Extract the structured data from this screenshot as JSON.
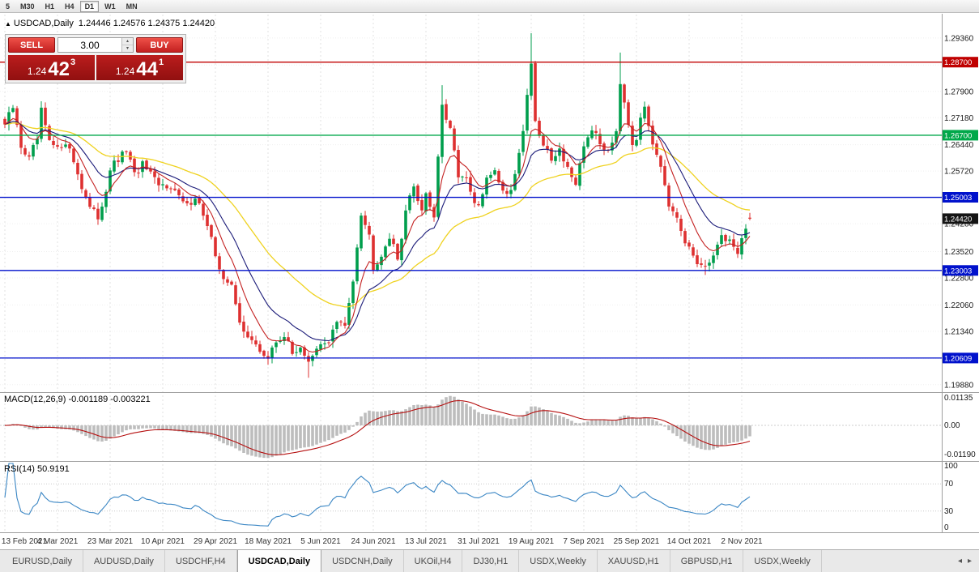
{
  "toolbar": {
    "timeframes": [
      {
        "label": "5",
        "active": false
      },
      {
        "label": "M30",
        "active": false
      },
      {
        "label": "H1",
        "active": false
      },
      {
        "label": "H4",
        "active": false
      },
      {
        "label": "D1",
        "active": true
      },
      {
        "label": "W1",
        "active": false
      },
      {
        "label": "MN",
        "active": false
      }
    ]
  },
  "chart_header": {
    "marker": "▲",
    "symbol_label": "USDCAD,Daily",
    "ohlc_text": "1.24446 1.24576 1.24375 1.24420"
  },
  "trade_panel": {
    "sell_label": "SELL",
    "buy_label": "BUY",
    "volume": "3.00",
    "volume_up_glyph": "▴",
    "volume_down_glyph": "▾",
    "sell_price": {
      "prefix": "1.24",
      "big": "42",
      "sup": "3"
    },
    "buy_price": {
      "prefix": "1.24",
      "big": "44",
      "sup": "1"
    }
  },
  "colors": {
    "up_candle": "#009E4C",
    "down_candle": "#DE3030",
    "ma_fast": "#C42222",
    "ma_mid": "#1A1A78",
    "ma_slow": "#EFD21F",
    "macd_hist": "#BDBDBD",
    "macd_signal": "#B50F0F",
    "rsi_line": "#3A86C4",
    "grid": "#E2E2E2",
    "axis_text": "#1A1A1A"
  },
  "chart_data": {
    "type": "candlestick",
    "symbol": "USDCAD",
    "timeframe": "Daily",
    "current": {
      "open": 1.24446,
      "high": 1.24576,
      "low": 1.24375,
      "close": 1.2442
    },
    "candle_count": 185,
    "candles_per_label": 13,
    "x_labels": [
      "13 Feb 2021",
      "4 Mar 2021",
      "23 Mar 2021",
      "10 Apr 2021",
      "29 Apr 2021",
      "18 May 2021",
      "5 Jun 2021",
      "24 Jun 2021",
      "13 Jul 2021",
      "31 Jul 2021",
      "19 Aug 2021",
      "7 Sep 2021",
      "25 Sep 2021",
      "14 Oct 2021",
      "2 Nov 2021"
    ],
    "y_axis": {
      "max": 1.3,
      "min": 1.1972,
      "labels": [
        "1.29360",
        "1.27900",
        "1.27180",
        "1.26440",
        "1.25720",
        "1.24280",
        "1.23520",
        "1.22800",
        "1.22060",
        "1.21340",
        "1.19880"
      ],
      "grid_prices": [
        "1.29360",
        "1.28620",
        "1.27900",
        "1.27180",
        "1.26440",
        "1.25720",
        "1.25000",
        "1.24280",
        "1.23520",
        "1.22800",
        "1.22060",
        "1.21340",
        "1.20600",
        "1.19880"
      ]
    },
    "price_tags": [
      {
        "text": "1.28700",
        "color": "#C00000",
        "line": true
      },
      {
        "text": "1.26700",
        "color": "#00A84A",
        "line": true
      },
      {
        "text": "1.25003",
        "color": "#0011CC",
        "line": true
      },
      {
        "text": "1.24420",
        "color": "#141414",
        "line": false
      },
      {
        "text": "1.23003",
        "color": "#0011CC",
        "line": true
      },
      {
        "text": "1.20609",
        "color": "#0011CC",
        "line": true
      }
    ],
    "price_waypoints": [
      [
        0,
        1.27
      ],
      [
        2,
        1.2745
      ],
      [
        4,
        1.264
      ],
      [
        6,
        1.2605
      ],
      [
        8,
        1.266
      ],
      [
        9,
        1.2735
      ],
      [
        11,
        1.265
      ],
      [
        13,
        1.263
      ],
      [
        15,
        1.2655
      ],
      [
        17,
        1.26
      ],
      [
        19,
        1.253
      ],
      [
        21,
        1.247
      ],
      [
        23,
        1.2445
      ],
      [
        25,
        1.252
      ],
      [
        26,
        1.258
      ],
      [
        28,
        1.26
      ],
      [
        30,
        1.263
      ],
      [
        32,
        1.256
      ],
      [
        34,
        1.259
      ],
      [
        36,
        1.256
      ],
      [
        38,
        1.253
      ],
      [
        41,
        1.2535
      ],
      [
        43,
        1.25
      ],
      [
        45,
        1.2475
      ],
      [
        47,
        1.2505
      ],
      [
        49,
        1.2455
      ],
      [
        51,
        1.2385
      ],
      [
        52,
        1.233
      ],
      [
        54,
        1.2285
      ],
      [
        56,
        1.2255
      ],
      [
        58,
        1.2155
      ],
      [
        60,
        1.2125
      ],
      [
        62,
        1.209
      ],
      [
        64,
        1.207
      ],
      [
        65,
        1.206
      ],
      [
        67,
        1.2105
      ],
      [
        69,
        1.2125
      ],
      [
        71,
        1.207
      ],
      [
        73,
        1.2095
      ],
      [
        75,
        1.2045
      ],
      [
        77,
        1.208
      ],
      [
        78,
        1.2095
      ],
      [
        80,
        1.211
      ],
      [
        82,
        1.216
      ],
      [
        84,
        1.2145
      ],
      [
        86,
        1.228
      ],
      [
        88,
        1.246
      ],
      [
        90,
        1.2395
      ],
      [
        91,
        1.231
      ],
      [
        93,
        1.2345
      ],
      [
        95,
        1.2395
      ],
      [
        97,
        1.233
      ],
      [
        99,
        1.2465
      ],
      [
        101,
        1.253
      ],
      [
        103,
        1.2465
      ],
      [
        104,
        1.2515
      ],
      [
        106,
        1.2445
      ],
      [
        107,
        1.2615
      ],
      [
        108,
        1.2745
      ],
      [
        110,
        1.268
      ],
      [
        112,
        1.2565
      ],
      [
        114,
        1.2545
      ],
      [
        116,
        1.248
      ],
      [
        117,
        1.2475
      ],
      [
        119,
        1.2545
      ],
      [
        121,
        1.258
      ],
      [
        123,
        1.2515
      ],
      [
        125,
        1.252
      ],
      [
        127,
        1.2625
      ],
      [
        128,
        1.268
      ],
      [
        129,
        1.2785
      ],
      [
        130,
        1.287
      ],
      [
        131,
        1.27
      ],
      [
        133,
        1.264
      ],
      [
        135,
        1.261
      ],
      [
        137,
        1.263
      ],
      [
        139,
        1.2585
      ],
      [
        141,
        1.2525
      ],
      [
        143,
        1.264
      ],
      [
        145,
        1.269
      ],
      [
        147,
        1.2645
      ],
      [
        149,
        1.263
      ],
      [
        151,
        1.2685
      ],
      [
        152,
        1.282
      ],
      [
        153,
        1.2765
      ],
      [
        155,
        1.265
      ],
      [
        156,
        1.2665
      ],
      [
        158,
        1.275
      ],
      [
        160,
        1.2655
      ],
      [
        162,
        1.259
      ],
      [
        164,
        1.2465
      ],
      [
        166,
        1.244
      ],
      [
        168,
        1.237
      ],
      [
        169,
        1.2365
      ],
      [
        171,
        1.232
      ],
      [
        173,
        1.23
      ],
      [
        175,
        1.235
      ],
      [
        177,
        1.239
      ],
      [
        179,
        1.2385
      ],
      [
        181,
        1.2345
      ],
      [
        182,
        1.2395
      ],
      [
        184,
        1.2442
      ]
    ],
    "high_overrides": [
      [
        108,
        1.2807
      ],
      [
        130,
        1.2949
      ],
      [
        152,
        1.2896
      ]
    ],
    "low_overrides": [
      [
        23,
        1.2425
      ],
      [
        75,
        1.2007
      ],
      [
        173,
        1.2288
      ]
    ],
    "macd": {
      "label": "MACD(12,26,9) -0.001189 -0.003221",
      "fast": 12,
      "slow": 26,
      "signal": 9,
      "current_main": -0.001189,
      "current_signal": -0.003221,
      "scale": [
        {
          "text": "0.01135",
          "value": 0.01135
        },
        {
          "text": "0.00",
          "value": 0
        },
        {
          "text": "-0.01190",
          "value": -0.0119
        }
      ]
    },
    "rsi": {
      "label": "RSI(14) 50.9191",
      "period": 14,
      "current": 50.9191,
      "levels": [
        70,
        30
      ],
      "scale": [
        {
          "text": "100",
          "value": 100
        },
        {
          "text": "70",
          "value": 70
        },
        {
          "text": "30",
          "value": 30
        },
        {
          "text": "0",
          "value": 0
        }
      ]
    }
  },
  "tab_bar": {
    "scroll_left_glyph": "◂",
    "scroll_right_glyph": "▸",
    "tabs": [
      {
        "label": "EURUSD,Daily",
        "active": false
      },
      {
        "label": "AUDUSD,Daily",
        "active": false
      },
      {
        "label": "USDCHF,H4",
        "active": false
      },
      {
        "label": "USDCAD,Daily",
        "active": true
      },
      {
        "label": "USDCNH,Daily",
        "active": false
      },
      {
        "label": "UKOil,H4",
        "active": false
      },
      {
        "label": "DJ30,H1",
        "active": false
      },
      {
        "label": "USDX,Weekly",
        "active": false
      },
      {
        "label": "XAUUSD,H1",
        "active": false
      },
      {
        "label": "GBPUSD,H1",
        "active": false
      },
      {
        "label": "USDX,Weekly",
        "active": false
      }
    ]
  }
}
